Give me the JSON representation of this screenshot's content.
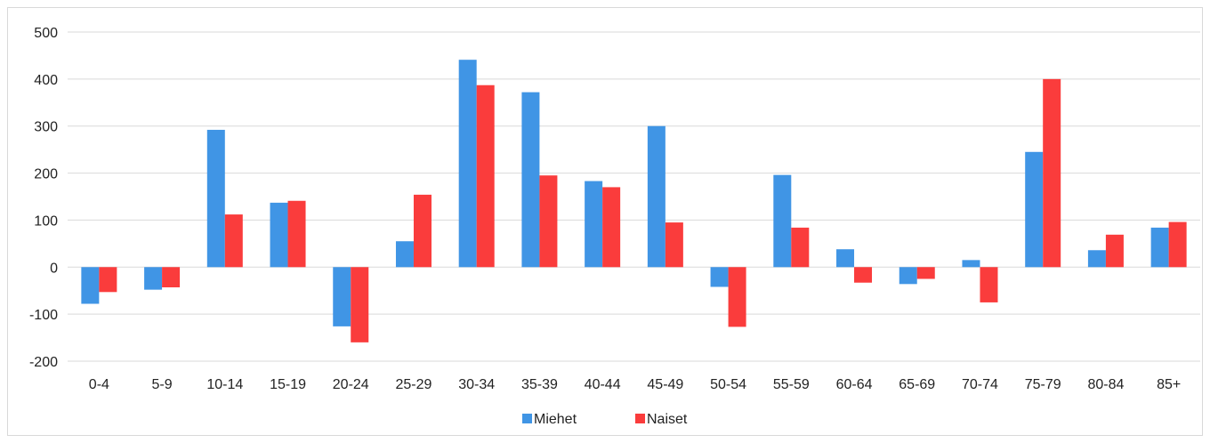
{
  "chart_data": {
    "type": "bar",
    "title": "",
    "xlabel": "",
    "ylabel": "",
    "categories": [
      "0-4",
      "5-9",
      "10-14",
      "15-19",
      "20-24",
      "25-29",
      "30-34",
      "35-39",
      "40-44",
      "45-49",
      "50-54",
      "55-59",
      "60-64",
      "65-69",
      "70-74",
      "75-79",
      "80-84",
      "85+"
    ],
    "series": [
      {
        "name": "Miehet",
        "color": "#4095e5",
        "values": [
          -78,
          -48,
          292,
          137,
          -126,
          55,
          441,
          372,
          183,
          300,
          -42,
          196,
          38,
          -36,
          15,
          245,
          36,
          84
        ]
      },
      {
        "name": "Naiset",
        "color": "#fa3c3c",
        "values": [
          -53,
          -43,
          112,
          141,
          -160,
          154,
          387,
          195,
          170,
          95,
          -127,
          84,
          -33,
          -25,
          -75,
          400,
          69,
          96
        ]
      }
    ],
    "ylim": [
      -200,
      500
    ],
    "yticks": [
      -200,
      -100,
      0,
      100,
      200,
      300,
      400,
      500
    ],
    "grid": true,
    "legend_position": "bottom-center"
  }
}
